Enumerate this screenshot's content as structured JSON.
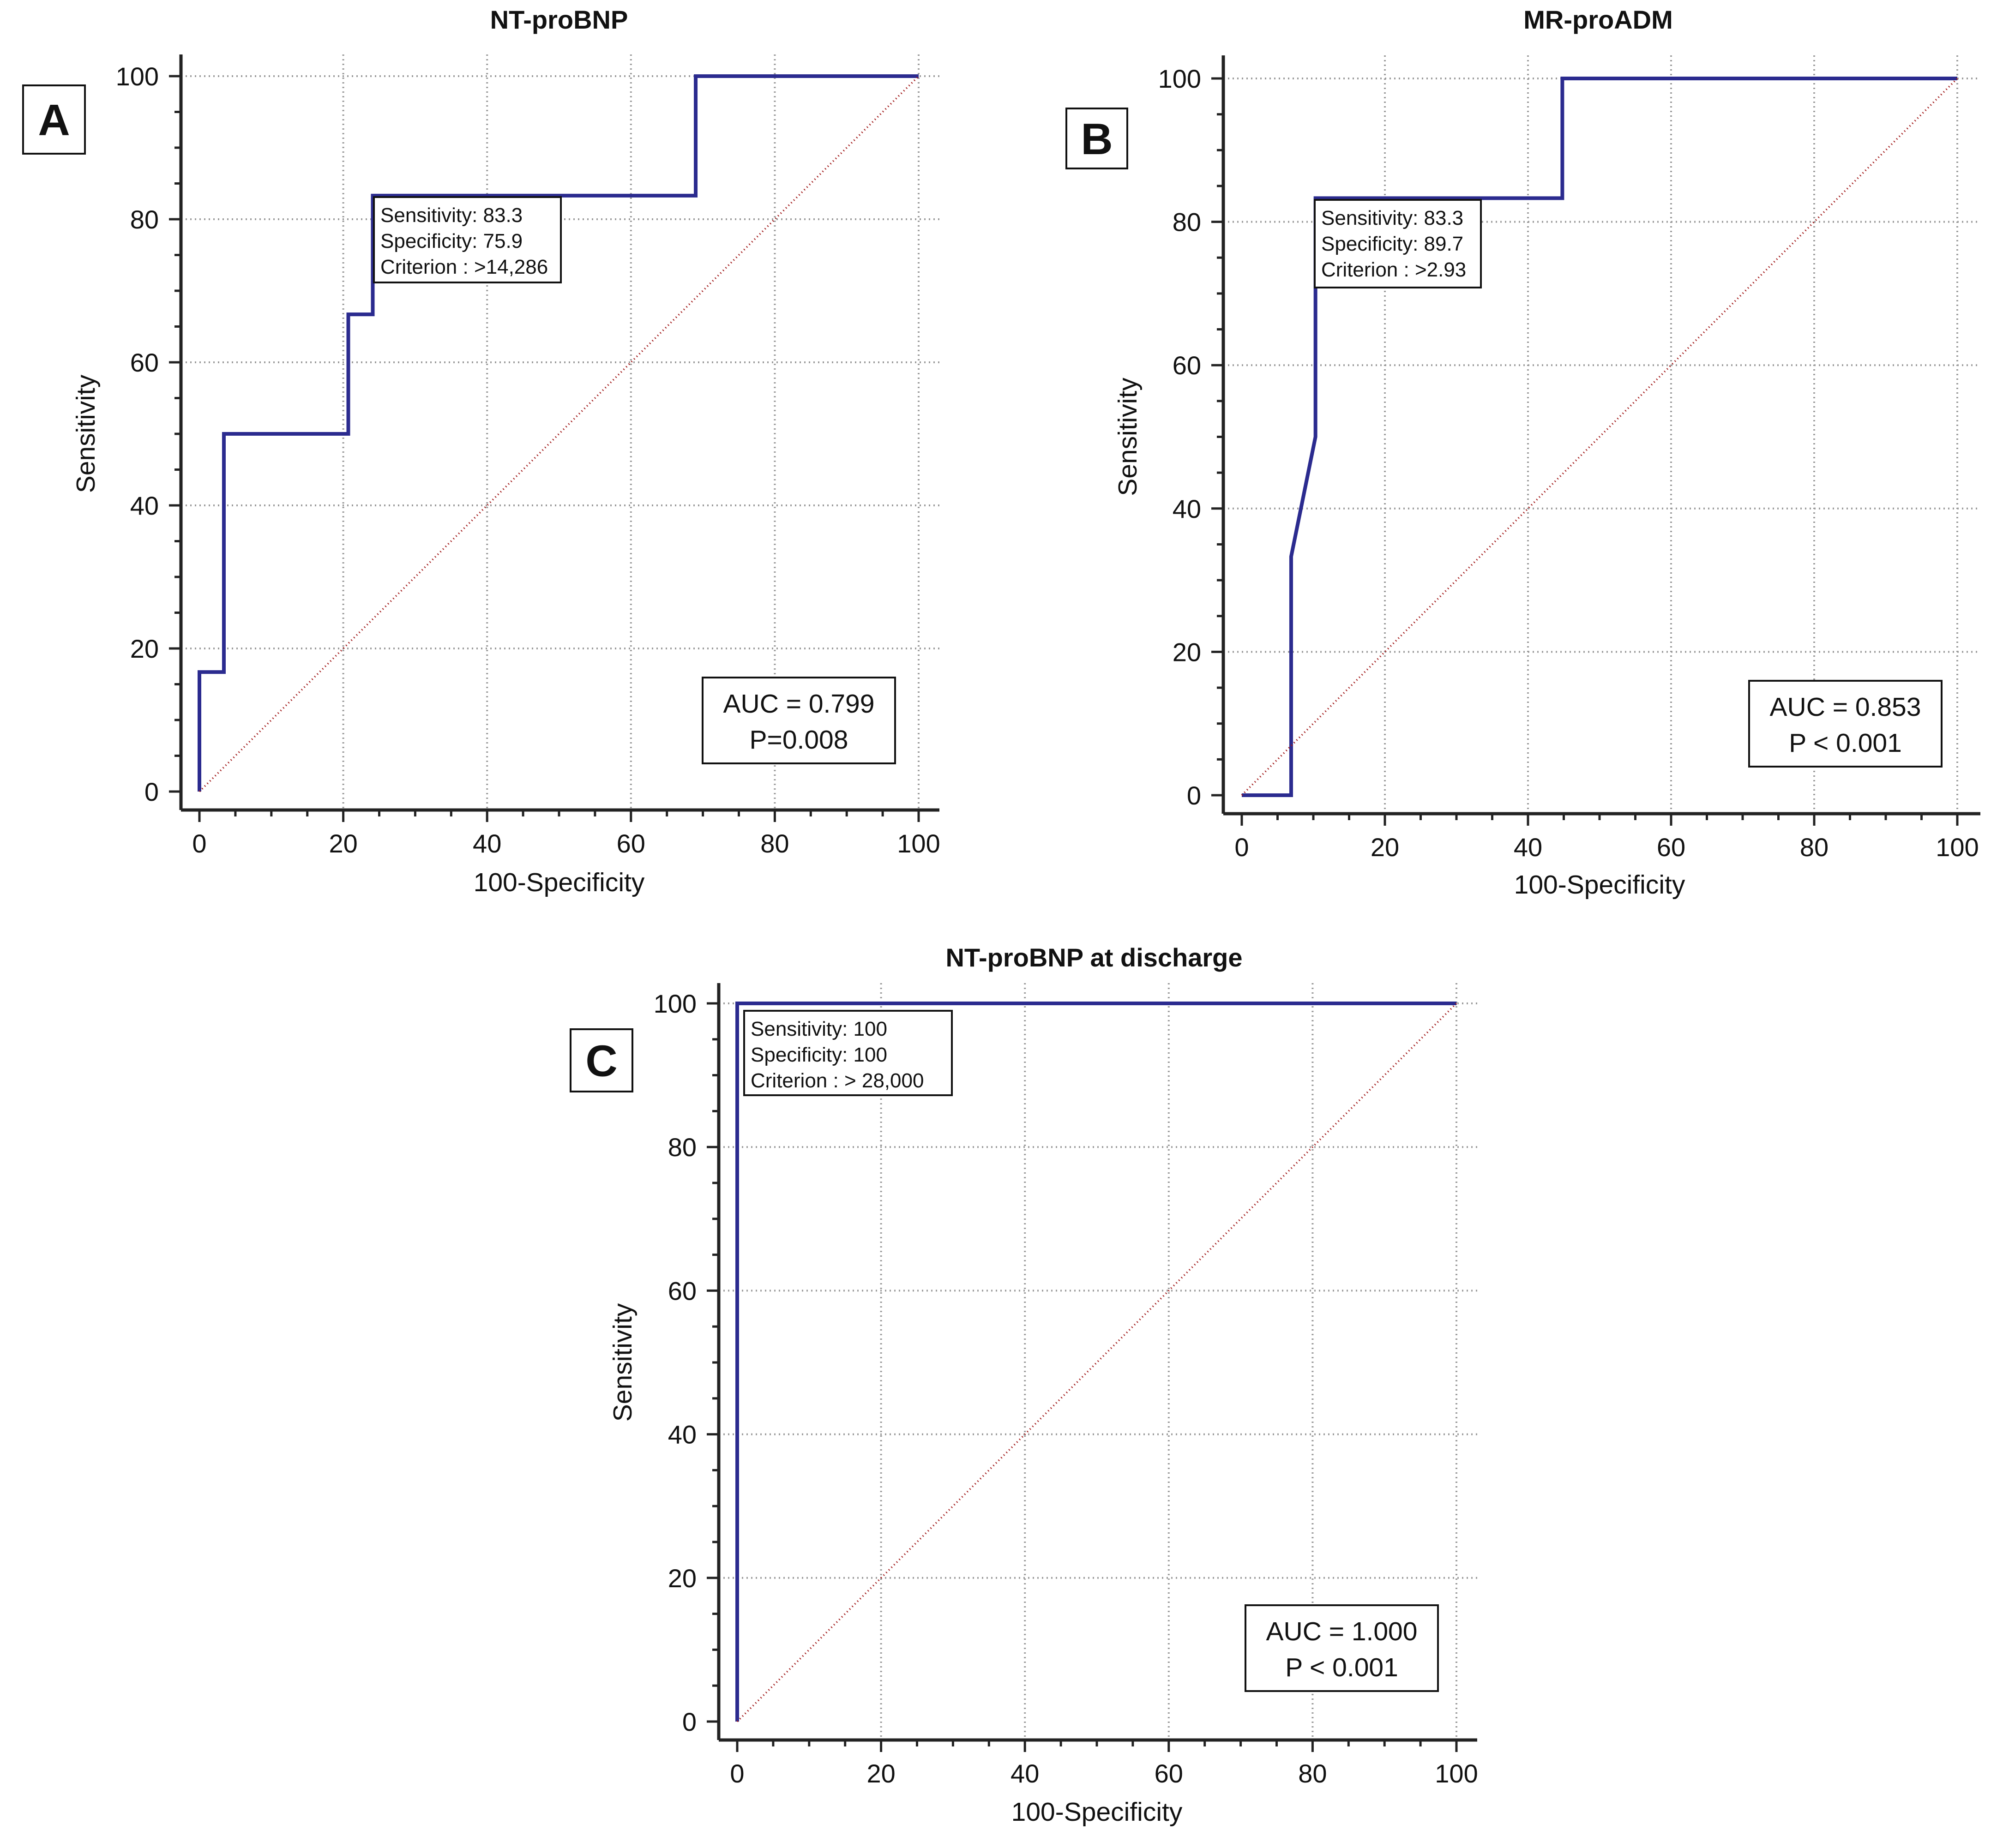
{
  "figure": {
    "description_free": true
  },
  "colors": {
    "roc_line": "#2b2b8f",
    "reference_line": "#a01818",
    "grid": "#9a9a9a",
    "axis": "#222222"
  },
  "chart_data": [
    {
      "panel": "A",
      "type": "line",
      "title": "NT-proBNP",
      "xlabel": "100-Specificity",
      "ylabel": "Sensitivity",
      "xlim": [
        0,
        100
      ],
      "ylim": [
        0,
        100
      ],
      "xticks": [
        0,
        20,
        40,
        60,
        80,
        100
      ],
      "yticks": [
        0,
        20,
        40,
        60,
        80,
        100
      ],
      "grid": true,
      "series": [
        {
          "name": "ROC curve",
          "x": [
            0,
            0,
            3.4,
            3.4,
            20.7,
            20.7,
            24.1,
            24.1,
            69.0,
            69.0,
            100
          ],
          "y": [
            0,
            16.7,
            16.7,
            50.0,
            50.0,
            66.7,
            66.7,
            83.3,
            83.3,
            100,
            100
          ]
        },
        {
          "name": "Reference line",
          "x": [
            0,
            100
          ],
          "y": [
            0,
            100
          ]
        }
      ],
      "criterion_box": {
        "lines": [
          "Sensitivity: 83.3",
          "Specificity: 75.9",
          "Criterion : >14,286"
        ],
        "placement": "next to optimal cut-off point (24.1, 83.3)"
      },
      "auc_box": {
        "lines": [
          "AUC = 0.799",
          "P=0.008"
        ],
        "placement": "bottom-right"
      }
    },
    {
      "panel": "B",
      "type": "line",
      "title": "MR-proADM",
      "xlabel": "100-Specificity",
      "ylabel": "Sensitivity",
      "xlim": [
        0,
        100
      ],
      "ylim": [
        0,
        100
      ],
      "xticks": [
        0,
        20,
        40,
        60,
        80,
        100
      ],
      "yticks": [
        0,
        20,
        40,
        60,
        80,
        100
      ],
      "grid": true,
      "series": [
        {
          "name": "ROC curve",
          "x": [
            0,
            6.9,
            6.9,
            10.3,
            10.3,
            44.8,
            44.8,
            100
          ],
          "y": [
            0,
            0,
            33.3,
            50.0,
            83.3,
            83.3,
            100,
            100
          ]
        },
        {
          "name": "Reference line",
          "x": [
            0,
            100
          ],
          "y": [
            0,
            100
          ]
        }
      ],
      "criterion_box": {
        "lines": [
          "Sensitivity: 83.3",
          "Specificity: 89.7",
          "Criterion : >2.93"
        ],
        "placement": "next to optimal cut-off point (10.3, 83.3)"
      },
      "auc_box": {
        "lines": [
          "AUC = 0.853",
          "P < 0.001"
        ],
        "placement": "bottom-right"
      }
    },
    {
      "panel": "C",
      "type": "line",
      "title": "NT-proBNP at discharge",
      "xlabel": "100-Specificity",
      "ylabel": "Sensitivity",
      "xlim": [
        0,
        100
      ],
      "ylim": [
        0,
        100
      ],
      "xticks": [
        0,
        20,
        40,
        60,
        80,
        100
      ],
      "yticks": [
        0,
        20,
        40,
        60,
        80,
        100
      ],
      "grid": true,
      "series": [
        {
          "name": "ROC curve",
          "x": [
            0,
            0,
            100
          ],
          "y": [
            0,
            100,
            100
          ]
        },
        {
          "name": "Reference line",
          "x": [
            0,
            100
          ],
          "y": [
            0,
            100
          ]
        }
      ],
      "criterion_box": {
        "lines": [
          "Sensitivity: 100",
          "Specificity: 100",
          "Criterion : > 28,000"
        ],
        "placement": "next to optimal cut-off point (0, 100)"
      },
      "auc_box": {
        "lines": [
          "AUC = 1.000",
          "P < 0.001"
        ],
        "placement": "bottom-right"
      }
    }
  ]
}
